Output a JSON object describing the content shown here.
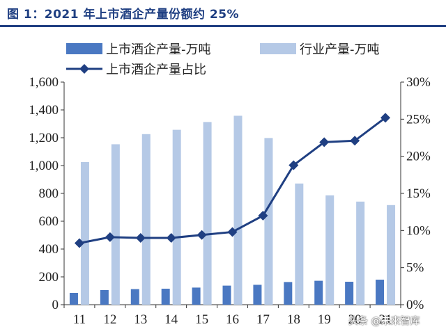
{
  "title": "图 1：2021 年上市酒企产量份额约 25%",
  "watermark": "头条 @未来智库",
  "chart_data": {
    "type": "bar",
    "categories": [
      "11",
      "12",
      "13",
      "14",
      "15",
      "16",
      "17",
      "18",
      "19",
      "20",
      "21"
    ],
    "series": [
      {
        "name": "上市酒企产量-万吨",
        "kind": "bar",
        "axis": "left",
        "color": "#4a78c2",
        "values": [
          85,
          105,
          112,
          115,
          123,
          137,
          143,
          163,
          172,
          165,
          180
        ]
      },
      {
        "name": "行业产量-万吨",
        "kind": "bar",
        "axis": "left",
        "color": "#b5c9e6",
        "values": [
          1025,
          1153,
          1226,
          1257,
          1313,
          1358,
          1198,
          871,
          786,
          741,
          716
        ]
      },
      {
        "name": "上市酒企产量占比",
        "kind": "line",
        "axis": "right",
        "color": "#1f3f82",
        "values": [
          8.3,
          9.1,
          9.0,
          9.0,
          9.4,
          9.8,
          12.0,
          18.8,
          21.9,
          22.1,
          25.2
        ]
      }
    ],
    "y_left": {
      "min": 0,
      "max": 1600,
      "ticks": [
        "0",
        "200",
        "400",
        "600",
        "800",
        "1,000",
        "1,200",
        "1,400",
        "1,600"
      ]
    },
    "y_right": {
      "min": 0,
      "max": 30,
      "ticks": [
        "0%",
        "5%",
        "10%",
        "15%",
        "20%",
        "25%",
        "30%"
      ]
    },
    "grid": false,
    "legend": "top"
  }
}
